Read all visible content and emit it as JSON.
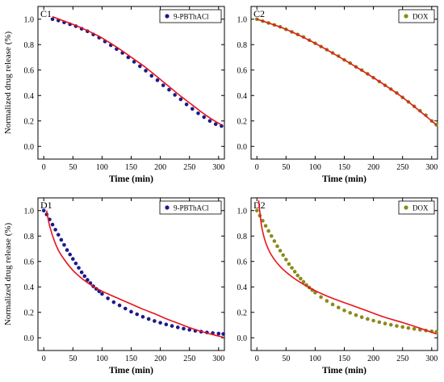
{
  "figure": {
    "colors": {
      "blue_points": "#1a1a8c",
      "olive_points": "#8a8a1a",
      "fit_line": "#e8141a",
      "frame": "#000000"
    }
  },
  "chart_data": [
    {
      "panel": "C1",
      "type": "scatter",
      "legend": "9-PBThACl",
      "legend_position": "top-right",
      "ylabel": "Normalized drug release (%)",
      "xlabel": "Time (min)",
      "xlim": [
        -10,
        310
      ],
      "ylim": [
        -0.1,
        1.1
      ],
      "xticks": [
        0,
        50,
        100,
        150,
        200,
        250,
        300
      ],
      "yticks": [
        0.0,
        0.2,
        0.4,
        0.6,
        0.8,
        1.0
      ],
      "grid": false,
      "marker_color": "#1a1a8c",
      "series": [
        {
          "x": [
            15,
            25,
            35,
            45,
            55,
            65,
            75,
            85,
            95,
            105,
            115,
            125,
            135,
            145,
            155,
            165,
            175,
            185,
            195,
            205,
            215,
            225,
            235,
            245,
            255,
            265,
            275,
            285,
            295,
            305
          ],
          "y": [
            1.0,
            0.99,
            0.975,
            0.96,
            0.945,
            0.925,
            0.905,
            0.88,
            0.855,
            0.825,
            0.795,
            0.765,
            0.735,
            0.7,
            0.665,
            0.63,
            0.595,
            0.555,
            0.52,
            0.48,
            0.445,
            0.405,
            0.37,
            0.33,
            0.295,
            0.26,
            0.23,
            0.2,
            0.175,
            0.16
          ]
        }
      ],
      "fit": {
        "x": [
          15,
          35,
          55,
          75,
          95,
          115,
          135,
          155,
          175,
          195,
          215,
          235,
          255,
          275,
          295,
          305
        ],
        "y": [
          1.02,
          0.985,
          0.95,
          0.91,
          0.865,
          0.81,
          0.75,
          0.685,
          0.62,
          0.545,
          0.47,
          0.395,
          0.325,
          0.255,
          0.195,
          0.17
        ]
      }
    },
    {
      "panel": "C2",
      "type": "scatter",
      "legend": "DOX",
      "legend_position": "top-right",
      "xlabel": "Time (min)",
      "xlim": [
        -10,
        310
      ],
      "ylim": [
        -0.1,
        1.1
      ],
      "xticks": [
        0,
        50,
        100,
        150,
        200,
        250,
        300
      ],
      "yticks": [
        0.0,
        0.2,
        0.4,
        0.6,
        0.8,
        1.0
      ],
      "grid": false,
      "marker_color": "#8a8a1a",
      "series": [
        {
          "x": [
            0,
            10,
            20,
            30,
            40,
            50,
            60,
            70,
            80,
            90,
            100,
            110,
            120,
            130,
            140,
            150,
            160,
            170,
            180,
            190,
            200,
            210,
            220,
            230,
            240,
            250,
            260,
            270,
            280,
            290,
            300,
            308
          ],
          "y": [
            1.0,
            0.985,
            0.97,
            0.955,
            0.94,
            0.92,
            0.9,
            0.88,
            0.86,
            0.835,
            0.81,
            0.785,
            0.76,
            0.735,
            0.71,
            0.68,
            0.655,
            0.625,
            0.6,
            0.57,
            0.54,
            0.51,
            0.48,
            0.45,
            0.42,
            0.385,
            0.35,
            0.315,
            0.28,
            0.245,
            0.2,
            0.17
          ]
        }
      ],
      "fit": {
        "x": [
          0,
          50,
          100,
          150,
          200,
          250,
          300,
          308
        ],
        "y": [
          1.0,
          0.92,
          0.81,
          0.68,
          0.54,
          0.385,
          0.2,
          0.165
        ]
      }
    },
    {
      "panel": "D1",
      "type": "scatter",
      "legend": "9-PBThACl",
      "legend_position": "top-right",
      "ylabel": "Normalized drug release (%)",
      "xlabel": "Time (min)",
      "xlim": [
        -10,
        310
      ],
      "ylim": [
        -0.1,
        1.1
      ],
      "xticks": [
        0,
        50,
        100,
        150,
        200,
        250,
        300
      ],
      "yticks": [
        0.0,
        0.2,
        0.4,
        0.6,
        0.8,
        1.0
      ],
      "grid": false,
      "marker_color": "#1a1a8c",
      "series": [
        {
          "x": [
            0,
            5,
            10,
            15,
            20,
            25,
            30,
            35,
            40,
            45,
            50,
            55,
            60,
            65,
            70,
            75,
            80,
            85,
            90,
            95,
            100,
            110,
            120,
            130,
            140,
            150,
            160,
            170,
            180,
            190,
            200,
            210,
            220,
            230,
            240,
            250,
            260,
            270,
            280,
            290,
            300,
            308
          ],
          "y": [
            1.0,
            0.97,
            0.93,
            0.89,
            0.85,
            0.81,
            0.77,
            0.73,
            0.69,
            0.655,
            0.62,
            0.585,
            0.55,
            0.515,
            0.485,
            0.455,
            0.43,
            0.405,
            0.385,
            0.365,
            0.345,
            0.31,
            0.28,
            0.255,
            0.23,
            0.205,
            0.185,
            0.165,
            0.148,
            0.132,
            0.118,
            0.105,
            0.093,
            0.082,
            0.072,
            0.063,
            0.055,
            0.048,
            0.042,
            0.037,
            0.033,
            0.03
          ]
        }
      ],
      "fit": {
        "x": [
          5,
          10,
          20,
          30,
          50,
          70,
          90,
          110,
          130,
          150,
          170,
          190,
          210,
          230,
          250,
          270,
          290,
          308
        ],
        "y": [
          1.0,
          0.88,
          0.74,
          0.65,
          0.53,
          0.45,
          0.39,
          0.345,
          0.305,
          0.265,
          0.225,
          0.19,
          0.15,
          0.115,
          0.08,
          0.05,
          0.025,
          0.005
        ]
      }
    },
    {
      "panel": "D2",
      "type": "scatter",
      "legend": "DOX",
      "legend_position": "top-right",
      "xlabel": "Time (min)",
      "xlim": [
        -10,
        310
      ],
      "ylim": [
        -0.1,
        1.1
      ],
      "xticks": [
        0,
        50,
        100,
        150,
        200,
        250,
        300
      ],
      "yticks": [
        0.0,
        0.2,
        0.4,
        0.6,
        0.8,
        1.0
      ],
      "grid": false,
      "marker_color": "#8a8a1a",
      "series": [
        {
          "x": [
            0,
            5,
            10,
            15,
            20,
            25,
            30,
            35,
            40,
            45,
            50,
            55,
            60,
            65,
            70,
            75,
            80,
            85,
            90,
            95,
            100,
            110,
            120,
            130,
            140,
            150,
            160,
            170,
            180,
            190,
            200,
            210,
            220,
            230,
            240,
            250,
            260,
            270,
            280,
            290,
            300,
            308
          ],
          "y": [
            1.0,
            0.96,
            0.92,
            0.88,
            0.84,
            0.8,
            0.76,
            0.72,
            0.685,
            0.65,
            0.615,
            0.58,
            0.55,
            0.52,
            0.49,
            0.465,
            0.44,
            0.415,
            0.395,
            0.375,
            0.355,
            0.32,
            0.29,
            0.262,
            0.238,
            0.215,
            0.196,
            0.178,
            0.162,
            0.148,
            0.135,
            0.123,
            0.112,
            0.102,
            0.093,
            0.085,
            0.077,
            0.07,
            0.063,
            0.057,
            0.051,
            0.047
          ]
        }
      ],
      "fit": {
        "x": [
          3,
          8,
          15,
          25,
          40,
          60,
          80,
          100,
          130,
          160,
          190,
          220,
          250,
          280,
          308
        ],
        "y": [
          1.08,
          0.88,
          0.75,
          0.65,
          0.56,
          0.48,
          0.42,
          0.37,
          0.31,
          0.26,
          0.21,
          0.16,
          0.12,
          0.075,
          0.03
        ]
      }
    }
  ]
}
